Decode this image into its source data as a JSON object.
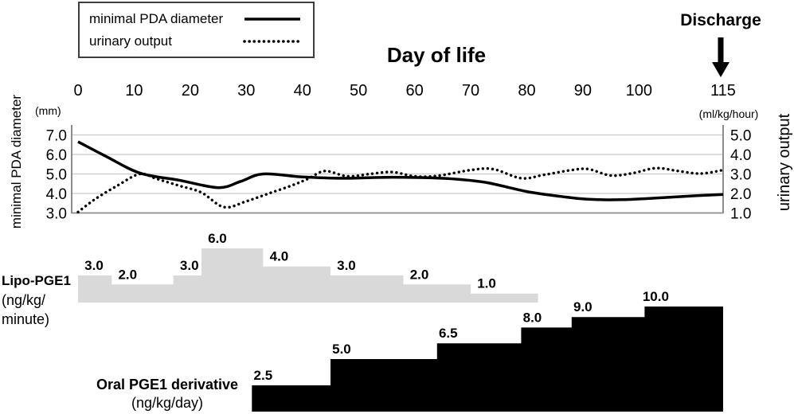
{
  "chart_data": {
    "type": "line",
    "x_label": "Day of life",
    "x_ticks": [
      0,
      10,
      20,
      30,
      40,
      50,
      60,
      70,
      80,
      90,
      100,
      115
    ],
    "y_left": {
      "label": "minimal PDA diameter",
      "unit": "(mm)",
      "range": [
        3.0,
        7.0
      ],
      "ticks": [
        7.0,
        6.0,
        5.0,
        4.0,
        3.0
      ]
    },
    "y_right": {
      "label": "urinary output",
      "unit": "(ml/kg/hour)",
      "range": [
        1.0,
        5.0
      ],
      "ticks": [
        5.0,
        4.0,
        3.0,
        2.0,
        1.0
      ]
    },
    "grid": true,
    "legend_position": "top-left",
    "annotations": [
      {
        "text": "Discharge",
        "x": 115
      }
    ],
    "series": [
      {
        "name": "minimal PDA diameter",
        "axis": "left",
        "style": "solid",
        "points": [
          [
            0,
            6.65
          ],
          [
            5,
            5.9
          ],
          [
            11,
            5.05
          ],
          [
            18,
            4.68
          ],
          [
            25,
            4.3
          ],
          [
            29,
            4.62
          ],
          [
            33,
            5.0
          ],
          [
            40,
            4.85
          ],
          [
            47,
            4.78
          ],
          [
            55,
            4.83
          ],
          [
            63,
            4.8
          ],
          [
            68,
            4.72
          ],
          [
            73,
            4.55
          ],
          [
            80,
            4.1
          ],
          [
            86,
            3.85
          ],
          [
            91,
            3.7
          ],
          [
            97,
            3.68
          ],
          [
            104,
            3.78
          ],
          [
            110,
            3.88
          ],
          [
            115,
            3.95
          ]
        ]
      },
      {
        "name": "urinary output",
        "axis": "right",
        "style": "dotted",
        "points": [
          [
            0,
            1.05
          ],
          [
            3,
            1.7
          ],
          [
            7,
            2.4
          ],
          [
            11,
            3.0
          ],
          [
            14,
            2.75
          ],
          [
            18,
            2.4
          ],
          [
            22,
            2.05
          ],
          [
            26,
            1.3
          ],
          [
            30,
            1.6
          ],
          [
            34,
            2.0
          ],
          [
            38,
            2.4
          ],
          [
            41,
            2.75
          ],
          [
            44,
            3.15
          ],
          [
            48,
            2.88
          ],
          [
            52,
            3.0
          ],
          [
            56,
            3.1
          ],
          [
            60,
            2.88
          ],
          [
            64,
            2.9
          ],
          [
            70,
            3.2
          ],
          [
            74,
            3.25
          ],
          [
            79,
            2.78
          ],
          [
            83,
            2.95
          ],
          [
            88,
            3.2
          ],
          [
            91,
            3.25
          ],
          [
            95,
            2.92
          ],
          [
            99,
            3.05
          ],
          [
            103,
            3.3
          ],
          [
            107,
            3.15
          ],
          [
            111,
            3.02
          ],
          [
            115,
            3.2
          ]
        ]
      }
    ],
    "dose_bars": [
      {
        "name": "Lipo-PGE1",
        "unit": "ng/kg/minute",
        "color": "#d9d9d9",
        "display": {
          "title": "Lipo-PGE1",
          "unit_line1": "(ng/kg/",
          "unit_line2": "minute)"
        },
        "segments": [
          {
            "from": 0,
            "to": 6,
            "value": 3.0
          },
          {
            "from": 6,
            "to": 17,
            "value": 2.0
          },
          {
            "from": 17,
            "to": 22,
            "value": 3.0
          },
          {
            "from": 22,
            "to": 33,
            "value": 6.0
          },
          {
            "from": 33,
            "to": 45,
            "value": 4.0
          },
          {
            "from": 45,
            "to": 58,
            "value": 3.0
          },
          {
            "from": 58,
            "to": 70,
            "value": 2.0
          },
          {
            "from": 70,
            "to": 82,
            "value": 1.0
          }
        ]
      },
      {
        "name": "Oral PGE1 derivative",
        "unit": "ng/kg/day",
        "color": "#000000",
        "display": {
          "title": "Oral PGE1 derivative",
          "unit_line1": "(ng/kg/day)"
        },
        "segments": [
          {
            "from": 31,
            "to": 45,
            "value": 2.5
          },
          {
            "from": 45,
            "to": 64,
            "value": 5.0
          },
          {
            "from": 64,
            "to": 79,
            "value": 6.5
          },
          {
            "from": 79,
            "to": 88,
            "value": 8.0
          },
          {
            "from": 88,
            "to": 101,
            "value": 9.0
          },
          {
            "from": 101,
            "to": 115,
            "value": 10.0
          }
        ]
      }
    ],
    "colors": {
      "line": "#000000",
      "gridline": "#c9c9c9",
      "axis": "#8c8c8c",
      "lipo_bar": "#d9d9d9",
      "oral_bar": "#000000"
    }
  }
}
